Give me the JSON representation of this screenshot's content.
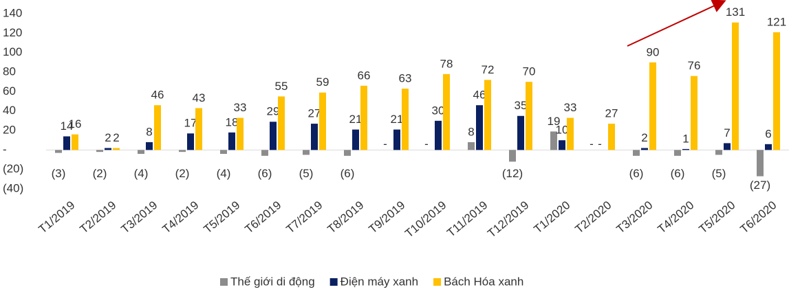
{
  "chart_data": {
    "type": "bar",
    "categories": [
      "T1/2019",
      "T2/2019",
      "T3/2019",
      "T4/2019",
      "T5/2019",
      "T6/2019",
      "T7/2019",
      "T8/2019",
      "T9/2019",
      "T10/2019",
      "T11/2019",
      "T12/2019",
      "T1/2020",
      "T2/2020",
      "T3/2020",
      "T4/2020",
      "T5/2020",
      "T6/2020"
    ],
    "series": [
      {
        "name": "Thế giới di động",
        "color": "#8c8c8c",
        "values": [
          -3,
          -2,
          -4,
          -2,
          -4,
          -6,
          -5,
          -6,
          0,
          0,
          8,
          -12,
          19,
          0,
          -6,
          -6,
          -5,
          -27
        ],
        "value_labels": [
          "(3)",
          "(2)",
          "(4)",
          "(2)",
          "(4)",
          "(6)",
          "(5)",
          "(6)",
          "-",
          "-",
          "8",
          "(12)",
          "19",
          "-",
          "(6)",
          "(6)",
          "(5)",
          "(27)"
        ]
      },
      {
        "name": "Điện máy xanh",
        "color": "#0b2060",
        "values": [
          14,
          2,
          8,
          17,
          18,
          29,
          27,
          21,
          21,
          30,
          46,
          35,
          10,
          0,
          2,
          1,
          7,
          6
        ],
        "value_labels": [
          "14",
          "2",
          "8",
          "17",
          "18",
          "29",
          "27",
          "21",
          "21",
          "30",
          "46",
          "35",
          "10",
          "-",
          "2",
          "1",
          "7",
          "6"
        ]
      },
      {
        "name": "Bách Hóa xanh",
        "color": "#ffc000",
        "values": [
          16,
          2,
          46,
          43,
          33,
          55,
          59,
          66,
          63,
          78,
          72,
          70,
          33,
          27,
          90,
          76,
          131,
          121
        ],
        "value_labels": [
          "16",
          "2",
          "46",
          "43",
          "33",
          "55",
          "59",
          "66",
          "63",
          "78",
          "72",
          "70",
          "33",
          "27",
          "90",
          "76",
          "131",
          "121"
        ]
      }
    ],
    "ylim": [
      -40,
      140
    ],
    "yticks": [
      {
        "value": -40,
        "label": "(40)"
      },
      {
        "value": -20,
        "label": "(20)"
      },
      {
        "value": 0,
        "label": "-"
      },
      20,
      40,
      60,
      80,
      100,
      120,
      140
    ],
    "legend": "bottom"
  }
}
